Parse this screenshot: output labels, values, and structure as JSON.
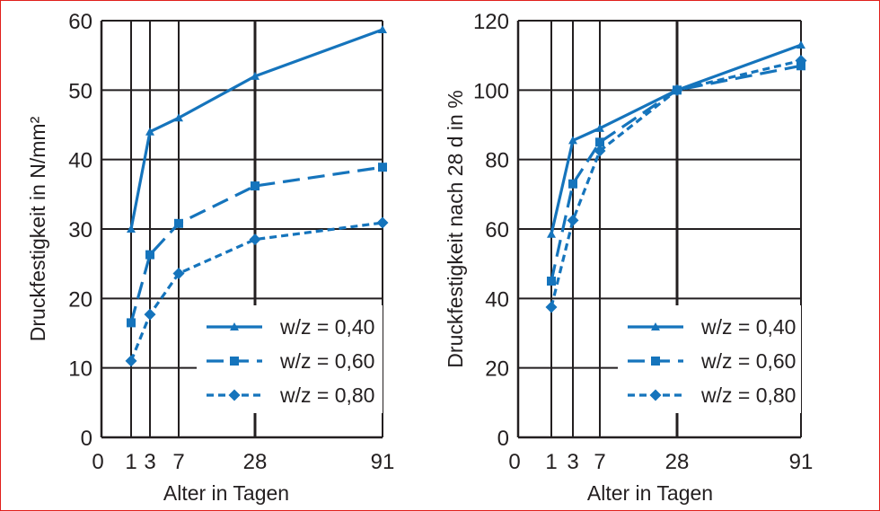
{
  "colors": {
    "series": "#1574bc",
    "grid": "#231f20",
    "frame": "#e0201b"
  },
  "chart_data": [
    {
      "type": "line",
      "xlabel": "Alter in Tagen",
      "ylabel": "Druckfestigkeit in N/mm²",
      "x_ticks": [
        0,
        1,
        3,
        7,
        28,
        91
      ],
      "x_tick_labels": [
        "0",
        "1",
        "3",
        "7",
        "28",
        "91"
      ],
      "y_ticks": [
        0,
        10,
        20,
        30,
        40,
        50,
        60
      ],
      "ylim": [
        0,
        60
      ],
      "grid": true,
      "legend_position": "bottom-right",
      "series": [
        {
          "name": "w/z = 0,40",
          "marker": "triangle",
          "dash": "solid",
          "x": [
            1,
            3,
            7,
            28,
            91
          ],
          "y": [
            30,
            44,
            46,
            52,
            58.7
          ]
        },
        {
          "name": "w/z = 0,60",
          "marker": "square",
          "dash": "long-dash",
          "x": [
            1,
            3,
            7,
            28,
            91
          ],
          "y": [
            16.5,
            26.3,
            30.8,
            36.2,
            38.9
          ]
        },
        {
          "name": "w/z = 0,80",
          "marker": "diamond",
          "dash": "short-dash",
          "x": [
            1,
            3,
            7,
            28,
            91
          ],
          "y": [
            11,
            17.7,
            23.6,
            28.5,
            30.9
          ]
        }
      ]
    },
    {
      "type": "line",
      "xlabel": "Alter in Tagen",
      "ylabel": "Druckfestigkeit nach 28 d in %",
      "x_ticks": [
        0,
        1,
        3,
        7,
        28,
        91
      ],
      "x_tick_labels": [
        "0",
        "1",
        "3",
        "7",
        "28",
        "91"
      ],
      "y_ticks": [
        0,
        20,
        40,
        60,
        80,
        100,
        120
      ],
      "ylim": [
        0,
        120
      ],
      "grid": true,
      "legend_position": "bottom-right",
      "series": [
        {
          "name": "w/z = 0,40",
          "marker": "triangle",
          "dash": "solid",
          "x": [
            1,
            3,
            7,
            28,
            91
          ],
          "y": [
            58.5,
            85.5,
            89,
            100,
            113
          ]
        },
        {
          "name": "w/z = 0,60",
          "marker": "square",
          "dash": "long-dash",
          "x": [
            1,
            3,
            7,
            28,
            91
          ],
          "y": [
            45,
            73,
            85,
            100,
            107
          ]
        },
        {
          "name": "w/z = 0,80",
          "marker": "diamond",
          "dash": "short-dash",
          "x": [
            1,
            3,
            7,
            28,
            91
          ],
          "y": [
            37.5,
            62.5,
            82.5,
            100,
            108.5
          ]
        }
      ]
    }
  ]
}
